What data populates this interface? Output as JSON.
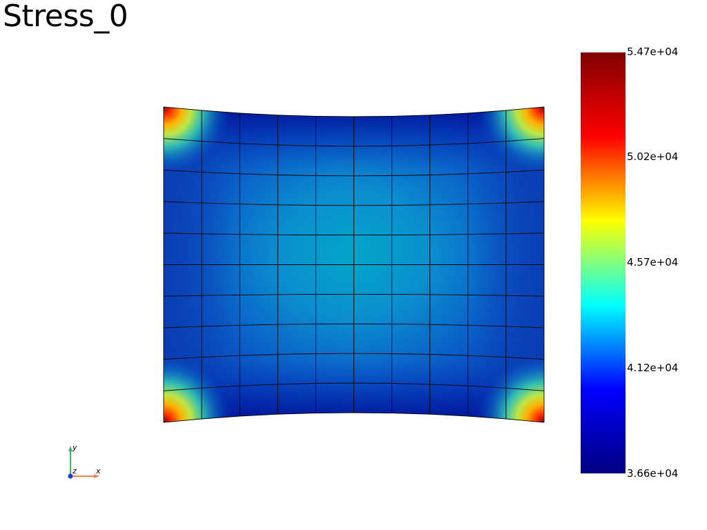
{
  "window": {
    "title": "Stress_0"
  },
  "colorbar": {
    "min_label": "3.66e+04",
    "max_label": "5.47e+04",
    "tick_labels": [
      "5.47e+04",
      "5.02e+04",
      "4.57e+04",
      "4.12e+04",
      "3.66e+04"
    ],
    "tick_values": [
      54700,
      50200,
      45700,
      41200,
      36600
    ],
    "colormap": [
      "#000080",
      "#0000ff",
      "#00ffff",
      "#ffff00",
      "#ff0000",
      "#800000"
    ]
  },
  "mesh": {
    "cols": 10,
    "rows": 10,
    "line_color": "#000000"
  },
  "orientation_axes": {
    "x_label": "x",
    "y_label": "y",
    "z_label": "z",
    "x_color": "#ff7f50",
    "y_color": "#3cb371",
    "z_color": "#1e3cc8"
  }
}
